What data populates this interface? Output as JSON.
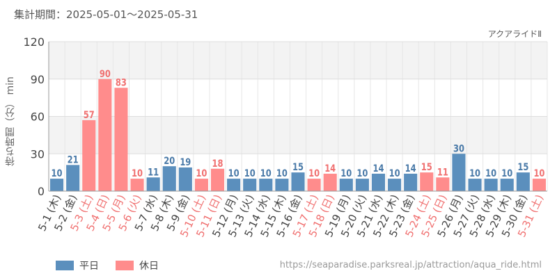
{
  "header": {
    "period_label": "集計期間：2025-05-01～2025-05-31",
    "attraction_name": "アクアライドⅡ"
  },
  "footer": {
    "source_url": "https://seaparadise.parksreal.jp/attraction/aqua_ride.html"
  },
  "colors": {
    "weekday": "#5b8fbd",
    "holiday": "#ff8c8c",
    "weekday_label": "#4a7aa8",
    "holiday_label": "#f07070"
  },
  "chart_data": {
    "type": "bar",
    "ylabel": "待ち時間（分） min",
    "ylim": [
      0,
      120
    ],
    "yticks": [
      0,
      30,
      60,
      90,
      120
    ],
    "grid": true,
    "legend": [
      {
        "name": "平日",
        "key": "weekday"
      },
      {
        "name": "休日",
        "key": "holiday"
      }
    ],
    "categories": [
      "5-1 (木)",
      "5-2 (金)",
      "5-3 (土)",
      "5-4 (日)",
      "5-5 (月)",
      "5-6 (火)",
      "5-7 (水)",
      "5-8 (木)",
      "5-9 (金)",
      "5-10 (土)",
      "5-11 (日)",
      "5-12 (月)",
      "5-13 (火)",
      "5-14 (水)",
      "5-15 (木)",
      "5-16 (金)",
      "5-17 (土)",
      "5-18 (日)",
      "5-19 (月)",
      "5-20 (火)",
      "5-21 (水)",
      "5-22 (木)",
      "5-23 (金)",
      "5-24 (土)",
      "5-25 (日)",
      "5-26 (月)",
      "5-27 (火)",
      "5-28 (水)",
      "5-29 (木)",
      "5-30 (金)",
      "5-31 (土)"
    ],
    "values": [
      10,
      21,
      57,
      90,
      83,
      10,
      11,
      20,
      19,
      10,
      18,
      10,
      10,
      10,
      10,
      15,
      10,
      14,
      10,
      10,
      14,
      10,
      14,
      15,
      11,
      30,
      10,
      10,
      10,
      15,
      10
    ],
    "day_type": [
      "weekday",
      "weekday",
      "holiday",
      "holiday",
      "holiday",
      "holiday",
      "weekday",
      "weekday",
      "weekday",
      "holiday",
      "holiday",
      "weekday",
      "weekday",
      "weekday",
      "weekday",
      "weekday",
      "holiday",
      "holiday",
      "weekday",
      "weekday",
      "weekday",
      "weekday",
      "weekday",
      "holiday",
      "holiday",
      "weekday",
      "weekday",
      "weekday",
      "weekday",
      "weekday",
      "holiday"
    ]
  }
}
